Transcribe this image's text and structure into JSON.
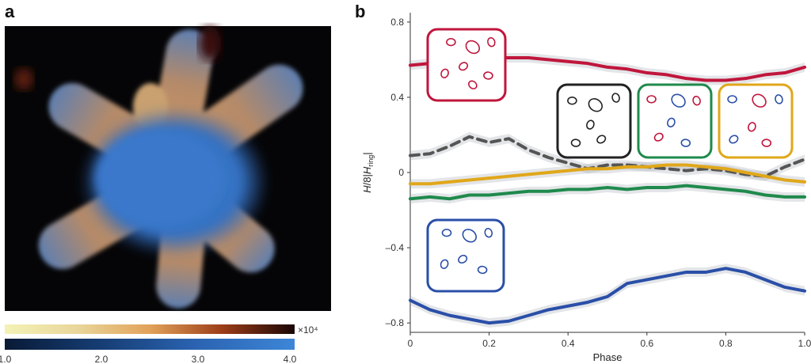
{
  "panel_a": {
    "letter": "a",
    "colorbar_top": {
      "exponent_label": "×10⁴"
    },
    "colorbar_bottom": {
      "ticks": [
        "1.0",
        "2.0",
        "3.0",
        "4.0"
      ]
    }
  },
  "panel_b": {
    "letter": "b"
  },
  "chart_data": {
    "type": "line",
    "title": "",
    "xlabel": "Phase",
    "ylabel_parts": {
      "h": "H",
      "slash": "/8|",
      "hring": "H",
      "sub": "ring",
      "end": "|"
    },
    "xlim": [
      0,
      1.0
    ],
    "ylim": [
      -0.85,
      0.85
    ],
    "xticks": [
      "0",
      "0.2",
      "0.4",
      "0.6",
      "0.8",
      "1.0"
    ],
    "yticks": [
      "–0.8",
      "–0.4",
      "0",
      "0.4",
      "0.8"
    ],
    "grid": false,
    "series": [
      {
        "color": "#c0163c",
        "dash": false,
        "x": [
          0,
          0.05,
          0.1,
          0.15,
          0.2,
          0.25,
          0.3,
          0.35,
          0.4,
          0.45,
          0.5,
          0.55,
          0.6,
          0.65,
          0.7,
          0.75,
          0.8,
          0.85,
          0.9,
          0.95,
          1.0
        ],
        "y": [
          0.57,
          0.58,
          0.59,
          0.6,
          0.61,
          0.61,
          0.61,
          0.6,
          0.59,
          0.58,
          0.56,
          0.55,
          0.53,
          0.52,
          0.5,
          0.49,
          0.49,
          0.5,
          0.52,
          0.53,
          0.56
        ]
      },
      {
        "color": "#555555",
        "dash": true,
        "x": [
          0,
          0.05,
          0.1,
          0.15,
          0.2,
          0.25,
          0.3,
          0.35,
          0.4,
          0.45,
          0.5,
          0.55,
          0.6,
          0.65,
          0.7,
          0.75,
          0.8,
          0.85,
          0.9,
          0.95,
          1.0
        ],
        "y": [
          0.09,
          0.1,
          0.14,
          0.19,
          0.16,
          0.18,
          0.12,
          0.08,
          0.05,
          0.02,
          0.04,
          0.04,
          0.03,
          0.02,
          0.01,
          0.02,
          0.01,
          -0.01,
          -0.02,
          0.03,
          0.07
        ]
      },
      {
        "color": "#e0a71a",
        "dash": false,
        "x": [
          0,
          0.05,
          0.1,
          0.15,
          0.2,
          0.25,
          0.3,
          0.35,
          0.4,
          0.45,
          0.5,
          0.55,
          0.6,
          0.65,
          0.7,
          0.75,
          0.8,
          0.85,
          0.9,
          0.95,
          1.0
        ],
        "y": [
          -0.06,
          -0.06,
          -0.05,
          -0.04,
          -0.03,
          -0.02,
          -0.01,
          0.0,
          0.01,
          0.02,
          0.02,
          0.03,
          0.03,
          0.04,
          0.04,
          0.03,
          0.02,
          0.0,
          -0.02,
          -0.04,
          -0.05
        ]
      },
      {
        "color": "#1f8a4c",
        "dash": false,
        "x": [
          0,
          0.05,
          0.1,
          0.15,
          0.2,
          0.25,
          0.3,
          0.35,
          0.4,
          0.45,
          0.5,
          0.55,
          0.6,
          0.65,
          0.7,
          0.75,
          0.8,
          0.85,
          0.9,
          0.95,
          1.0
        ],
        "y": [
          -0.14,
          -0.13,
          -0.14,
          -0.12,
          -0.12,
          -0.11,
          -0.1,
          -0.1,
          -0.09,
          -0.09,
          -0.08,
          -0.09,
          -0.08,
          -0.08,
          -0.07,
          -0.08,
          -0.09,
          -0.1,
          -0.12,
          -0.13,
          -0.13
        ]
      },
      {
        "color": "#2a4fa8",
        "dash": false,
        "x": [
          0,
          0.05,
          0.1,
          0.15,
          0.2,
          0.25,
          0.3,
          0.35,
          0.4,
          0.45,
          0.5,
          0.55,
          0.6,
          0.65,
          0.7,
          0.75,
          0.8,
          0.85,
          0.9,
          0.95,
          1.0
        ],
        "y": [
          -0.68,
          -0.73,
          -0.76,
          -0.78,
          -0.8,
          -0.79,
          -0.76,
          -0.73,
          -0.71,
          -0.69,
          -0.66,
          -0.59,
          -0.57,
          -0.55,
          -0.53,
          -0.53,
          -0.51,
          -0.53,
          -0.57,
          -0.61,
          -0.63
        ]
      }
    ]
  },
  "insets": [
    {
      "color": "#c0163c"
    },
    {
      "color": "#222222"
    },
    {
      "color": "#1f8a4c"
    },
    {
      "color": "#e0a71a"
    },
    {
      "color": "#2a4fa8"
    }
  ]
}
